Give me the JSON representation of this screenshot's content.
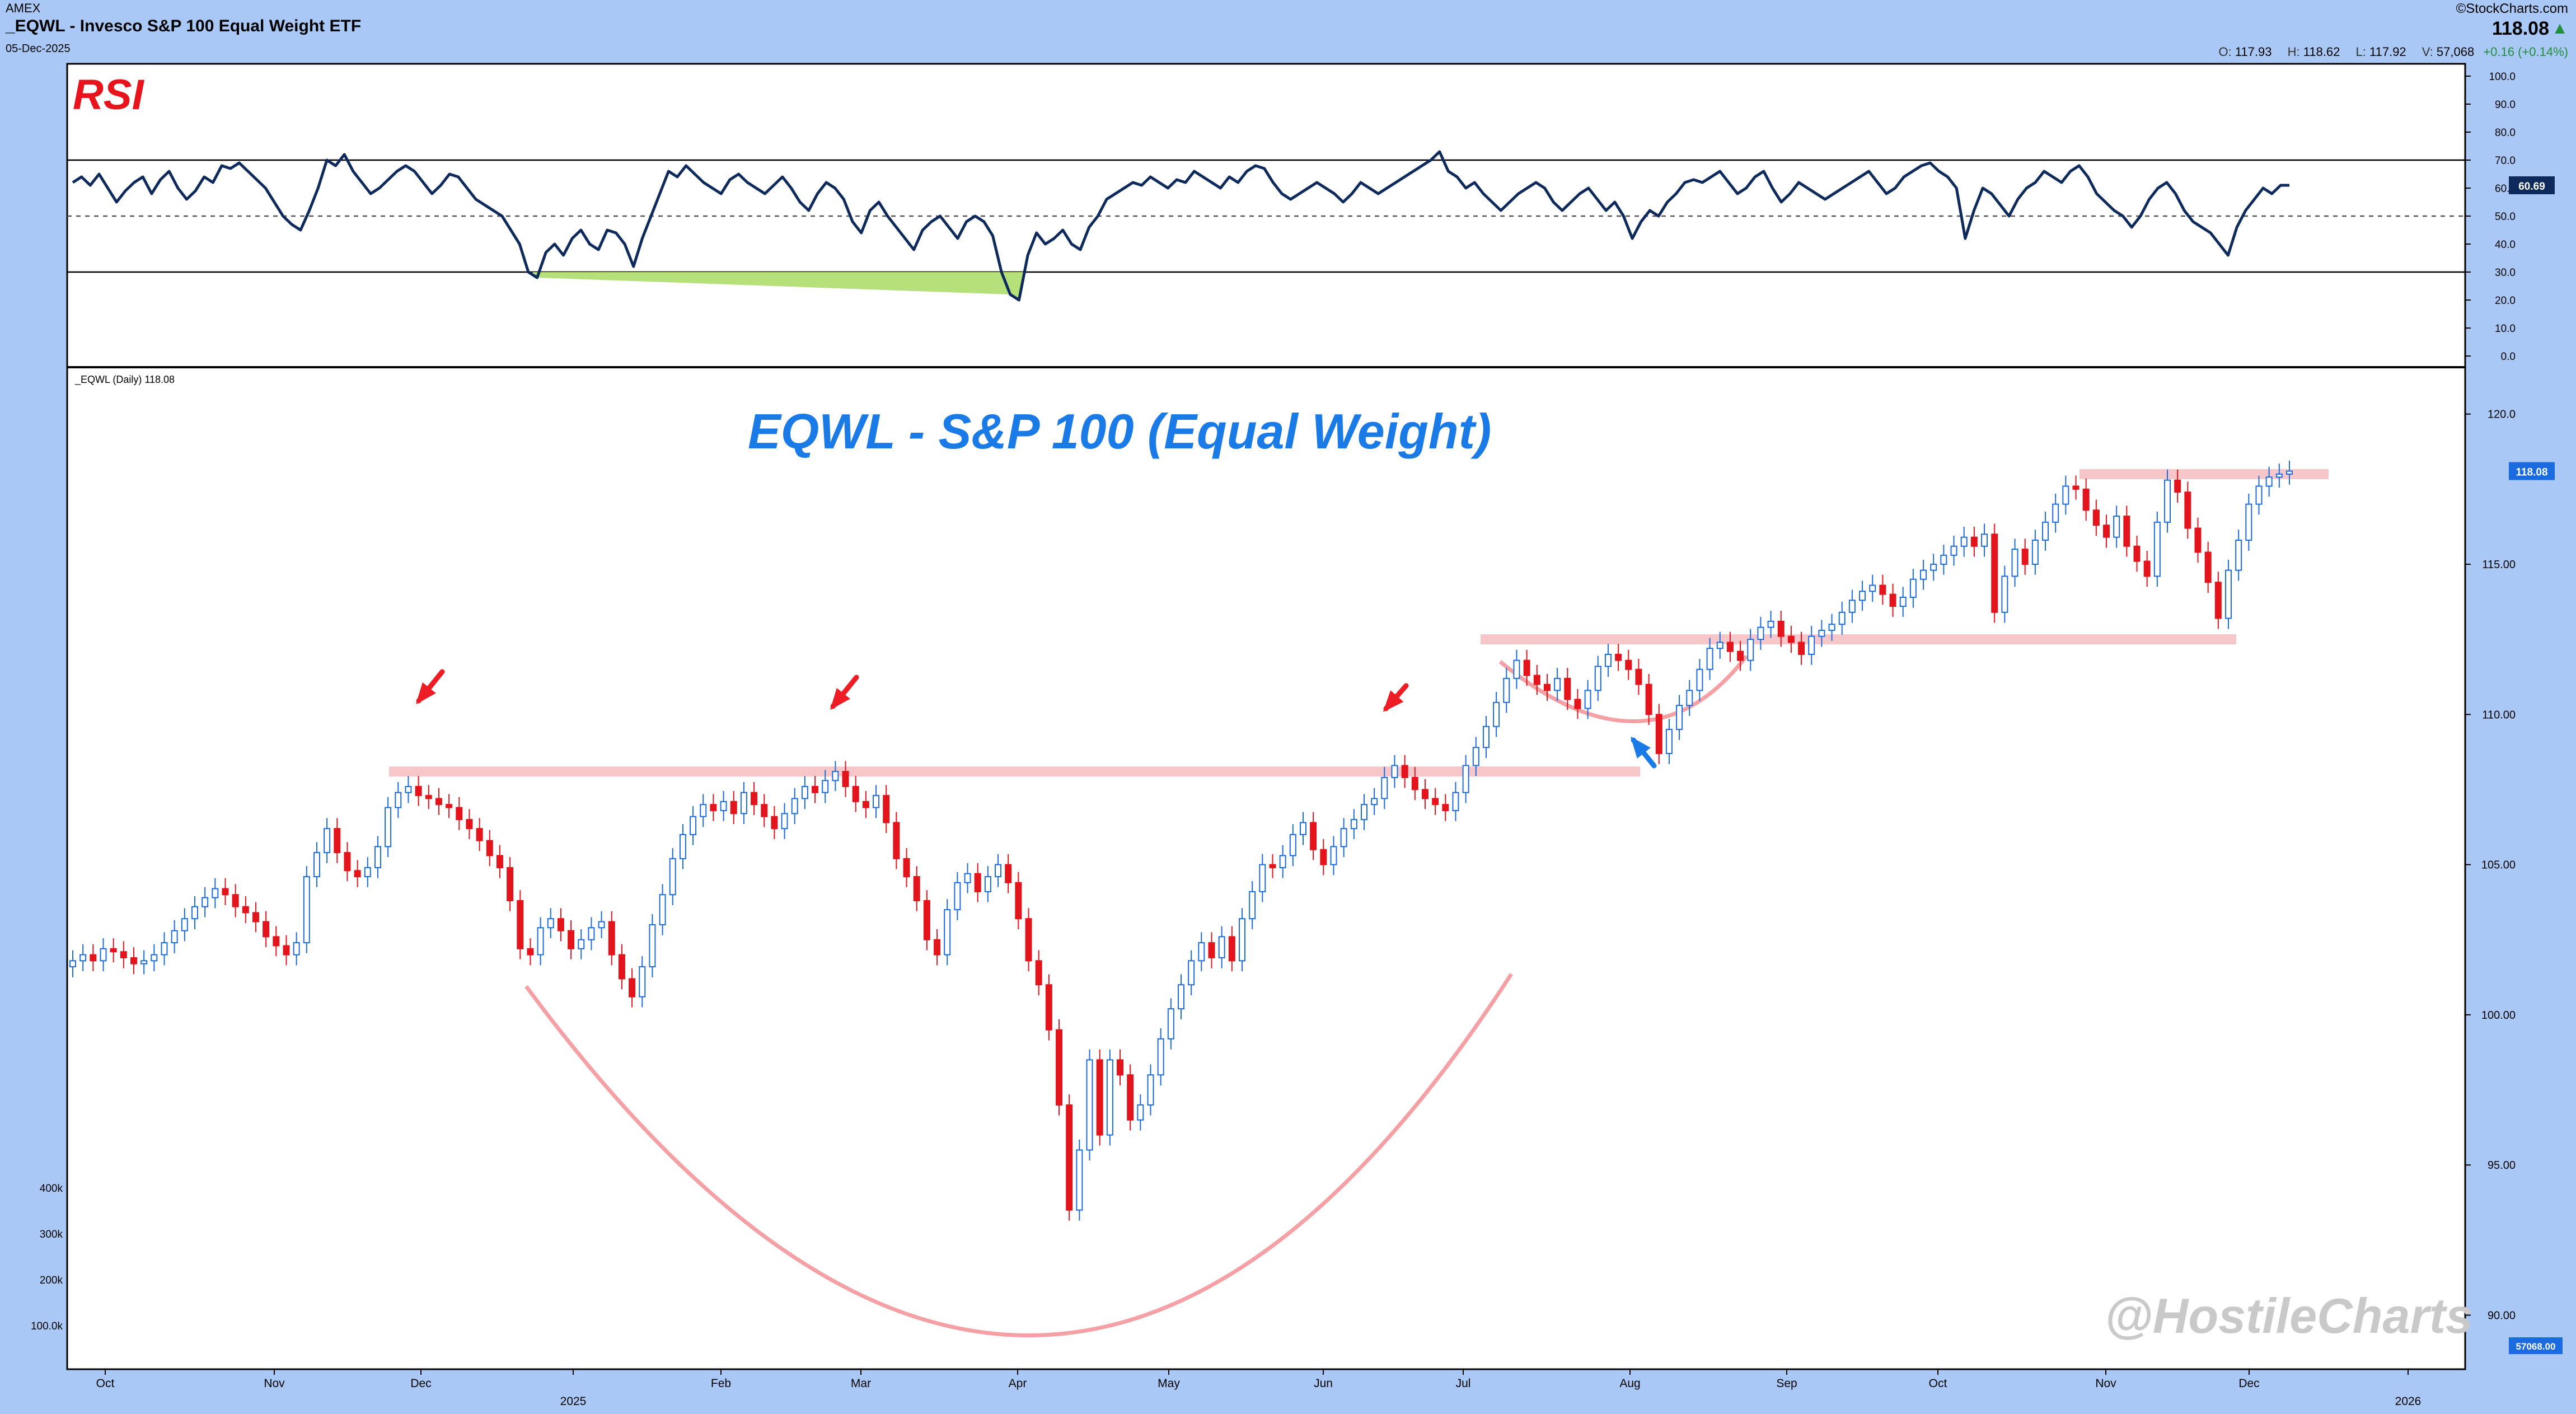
{
  "header": {
    "exchange": "AMEX",
    "symbol_name": "_EQWL - Invesco S&P 100 Equal Weight ETF",
    "date": "05-Dec-2025",
    "source": "©StockCharts.com",
    "last": "118.08",
    "up_arrow": "▲",
    "open_label": "O:",
    "open": "117.93",
    "high_label": "H:",
    "high": "118.62",
    "low_label": "L:",
    "low": "117.92",
    "vol_label": "V:",
    "volume": "57,068",
    "change": "+0.16 (+0.14%)"
  },
  "annotations": {
    "rsi_label": "RSI",
    "chart_title": "EQWL - S&P 100 (Equal Weight)",
    "price_label": "_EQWL (Daily) 118.08",
    "watermark": "@HostileCharts"
  },
  "chart_data": [
    {
      "type": "line",
      "title": "RSI",
      "ylim": [
        0,
        100
      ],
      "y_ticks": [
        "100.0",
        "90.0",
        "80.0",
        "70.0",
        "60.0",
        "50.0",
        "40.0",
        "30.0",
        "20.0",
        "10.0",
        "0.0"
      ],
      "reference_lines": [
        30,
        50,
        70
      ],
      "last_value_label": "60.69",
      "values": [
        62,
        64,
        61,
        65,
        60,
        55,
        59,
        62,
        64,
        58,
        63,
        66,
        60,
        56,
        59,
        64,
        62,
        68,
        67,
        69,
        66,
        63,
        60,
        55,
        50,
        47,
        45,
        52,
        60,
        70,
        68,
        72,
        66,
        62,
        58,
        60,
        63,
        66,
        68,
        66,
        62,
        58,
        61,
        65,
        64,
        60,
        56,
        54,
        52,
        50,
        45,
        40,
        30,
        28,
        37,
        40,
        36,
        42,
        45,
        40,
        38,
        45,
        44,
        40,
        32,
        42,
        50,
        58,
        66,
        64,
        68,
        65,
        62,
        60,
        58,
        63,
        65,
        62,
        60,
        58,
        61,
        64,
        60,
        55,
        52,
        58,
        62,
        60,
        56,
        48,
        44,
        52,
        55,
        50,
        46,
        42,
        38,
        45,
        48,
        50,
        46,
        42,
        48,
        50,
        48,
        43,
        30,
        22,
        20,
        36,
        44,
        40,
        42,
        45,
        40,
        38,
        46,
        50,
        56,
        58,
        60,
        62,
        61,
        64,
        62,
        60,
        63,
        62,
        66,
        64,
        62,
        60,
        64,
        62,
        66,
        68,
        67,
        62,
        58,
        56,
        58,
        60,
        62,
        60,
        58,
        55,
        58,
        62,
        60,
        58,
        60,
        62,
        64,
        66,
        68,
        70,
        73,
        66,
        64,
        60,
        62,
        58,
        55,
        52,
        55,
        58,
        60,
        62,
        60,
        55,
        52,
        55,
        58,
        60,
        56,
        52,
        55,
        50,
        42,
        48,
        52,
        50,
        55,
        58,
        62,
        63,
        62,
        64,
        66,
        62,
        58,
        60,
        64,
        66,
        60,
        55,
        58,
        62,
        60,
        58,
        56,
        58,
        60,
        62,
        64,
        66,
        62,
        58,
        60,
        64,
        66,
        68,
        69,
        66,
        64,
        60,
        42,
        52,
        60,
        58,
        54,
        50,
        56,
        60,
        62,
        66,
        64,
        62,
        66,
        68,
        64,
        58,
        55,
        52,
        50,
        46,
        50,
        56,
        60,
        62,
        58,
        52,
        48,
        46,
        44,
        40,
        36,
        46,
        52,
        56,
        60,
        58,
        61,
        61
      ]
    },
    {
      "type": "candlestick",
      "title": "_EQWL (Daily) 118.08",
      "ylim": [
        88.5,
        121.0
      ],
      "y_ticks": [
        "120.0",
        "115.00",
        "110.00",
        "105.00",
        "100.00",
        "95.00",
        "90.00"
      ],
      "last_value_label": "118.08",
      "x_tick_labels": [
        "Oct",
        "Nov",
        "Dec",
        "2025",
        "Feb",
        "Mar",
        "Apr",
        "May",
        "Jun",
        "Jul",
        "Aug",
        "Sep",
        "Oct",
        "Nov",
        "Dec",
        "2026"
      ],
      "close": [
        101.8,
        102.0,
        101.8,
        102.2,
        102.1,
        101.9,
        101.7,
        101.8,
        102.0,
        102.4,
        102.8,
        103.2,
        103.6,
        103.9,
        104.2,
        104.0,
        103.6,
        103.4,
        103.1,
        102.6,
        102.3,
        102.0,
        102.4,
        104.6,
        105.4,
        106.2,
        105.4,
        104.8,
        104.6,
        104.9,
        105.6,
        106.9,
        107.4,
        107.6,
        107.3,
        107.2,
        107.0,
        106.9,
        106.5,
        106.2,
        105.8,
        105.3,
        104.9,
        103.8,
        102.2,
        102.0,
        102.9,
        103.2,
        102.8,
        102.2,
        102.5,
        102.9,
        103.1,
        102.0,
        101.2,
        100.6,
        101.6,
        103.0,
        104.0,
        105.2,
        106.0,
        106.6,
        107.0,
        106.8,
        107.1,
        106.7,
        107.4,
        107.0,
        106.6,
        106.2,
        106.7,
        107.2,
        107.6,
        107.4,
        107.8,
        108.1,
        107.6,
        107.1,
        106.9,
        107.3,
        106.4,
        105.2,
        104.6,
        103.8,
        102.5,
        102.0,
        103.5,
        104.4,
        104.7,
        104.1,
        104.6,
        105.0,
        104.4,
        103.2,
        101.8,
        101.0,
        99.5,
        97.0,
        93.5,
        95.5,
        98.5,
        96.0,
        98.5,
        98.0,
        96.5,
        97.0,
        98.0,
        99.2,
        100.2,
        101.0,
        101.8,
        102.4,
        101.9,
        102.6,
        101.8,
        103.2,
        104.1,
        105.0,
        104.9,
        105.3,
        106.0,
        106.4,
        105.5,
        105.0,
        105.6,
        106.2,
        106.5,
        107.0,
        107.2,
        107.9,
        108.3,
        107.9,
        107.5,
        107.2,
        107.0,
        106.8,
        107.4,
        108.3,
        108.9,
        109.6,
        110.4,
        111.2,
        111.8,
        111.3,
        111.0,
        110.8,
        111.2,
        110.5,
        110.2,
        110.8,
        111.6,
        112.0,
        111.8,
        111.5,
        111.0,
        110.0,
        108.7,
        109.5,
        110.3,
        110.8,
        111.5,
        112.2,
        112.4,
        112.1,
        111.8,
        112.5,
        112.9,
        113.1,
        112.6,
        112.4,
        112.0,
        112.6,
        112.8,
        113.0,
        113.4,
        113.8,
        114.1,
        114.3,
        114.0,
        113.6,
        113.9,
        114.5,
        114.8,
        115.0,
        115.3,
        115.6,
        115.9,
        115.6,
        116.0,
        113.4,
        114.6,
        115.5,
        115.0,
        115.8,
        116.4,
        117.0,
        117.6,
        117.5,
        116.8,
        116.3,
        115.9,
        116.6,
        115.6,
        115.1,
        114.6,
        116.4,
        117.8,
        117.4,
        116.2,
        115.4,
        114.4,
        113.2,
        114.8,
        115.8,
        117.0,
        117.6,
        117.9,
        118.0,
        118.1
      ],
      "horizontal_levels": [
        108.1,
        112.5,
        118.0
      ],
      "volume_axis_labels": [
        "400k",
        "300k",
        "200k",
        "100.0k"
      ],
      "volume_last_label": "57068.00"
    }
  ],
  "colors": {
    "background_frame": "#a9c8f5",
    "panel_bg": "#ffffff",
    "up_candle": "#1a6be0",
    "down_candle": "#e3141b",
    "rsi_line": "#0e2a5c",
    "zone": "#f7c6c9",
    "arc": "#f4a0a5",
    "red_arrow": "#ee1c24",
    "blue_arrow": "#1a7ae6",
    "rsi_title": "#e8141c",
    "chart_title": "#1a7ae6"
  }
}
